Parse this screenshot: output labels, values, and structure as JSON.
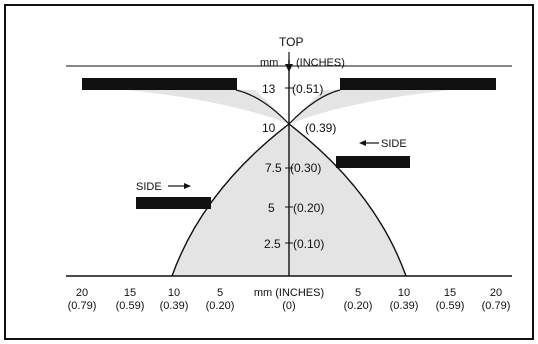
{
  "diagram": {
    "top_label": "TOP",
    "units_header_mm": "mm",
    "units_header_inches": "(INCHES)",
    "side_label_left": "SIDE",
    "side_label_right": "SIDE",
    "vertical_scale": [
      {
        "mm": "13",
        "in": "(0.51)"
      },
      {
        "mm": "10",
        "in": "(0.39)"
      },
      {
        "mm": "7.5",
        "in": "(0.30)"
      },
      {
        "mm": "5",
        "in": "(0.20)"
      },
      {
        "mm": "2.5",
        "in": "(0.10)"
      }
    ],
    "bottom_scale": [
      {
        "mm": "20",
        "in": "(0.79)"
      },
      {
        "mm": "15",
        "in": "(0.59)"
      },
      {
        "mm": "10",
        "in": "(0.39)"
      },
      {
        "mm": "5",
        "in": "(0.20)"
      },
      {
        "mm": "mm (INCHES)",
        "in": "(0)"
      },
      {
        "mm": "5",
        "in": "(0.20)"
      },
      {
        "mm": "10",
        "in": "(0.39)"
      },
      {
        "mm": "15",
        "in": "(0.59)"
      },
      {
        "mm": "20",
        "in": "(0.79)"
      }
    ],
    "colors": {
      "ink": "#111111",
      "shade": "#e4e4e4",
      "background": "#ffffff"
    }
  }
}
